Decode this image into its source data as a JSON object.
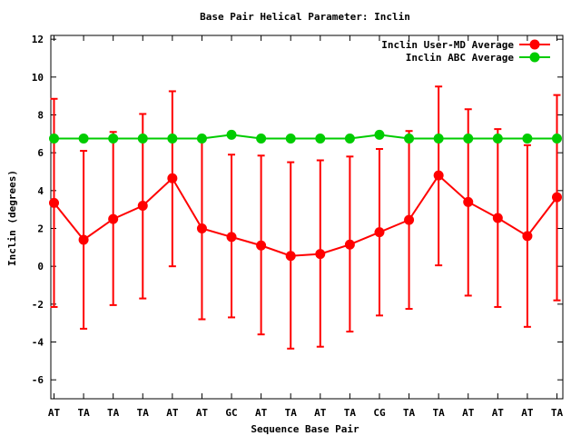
{
  "chart_data": {
    "type": "line",
    "title": "Base Pair Helical Parameter: Inclin",
    "xlabel": "Sequence Base Pair",
    "ylabel": "Inclin (degrees)",
    "categories": [
      "AT",
      "TA",
      "TA",
      "TA",
      "AT",
      "AT",
      "GC",
      "AT",
      "TA",
      "AT",
      "TA",
      "CG",
      "TA",
      "TA",
      "AT",
      "AT",
      "AT",
      "TA"
    ],
    "ylim": [
      -7,
      12.2
    ],
    "yticks": [
      -6,
      -4,
      -2,
      0,
      2,
      4,
      6,
      8,
      10,
      12
    ],
    "grid": false,
    "legend_position": "top-right",
    "series": [
      {
        "name": "Inclin User-MD Average",
        "color": "#ff0000",
        "values": [
          3.35,
          1.4,
          2.5,
          3.2,
          4.65,
          2.0,
          1.55,
          1.1,
          0.55,
          0.65,
          1.15,
          1.8,
          2.45,
          4.8,
          3.4,
          2.55,
          1.6,
          3.65
        ],
        "err_low": [
          -2.15,
          -3.3,
          -2.05,
          -1.7,
          0.0,
          -2.8,
          -2.7,
          -3.6,
          -4.35,
          -4.25,
          -3.45,
          -2.6,
          -2.25,
          0.05,
          -1.55,
          -2.15,
          -3.2,
          -1.8
        ],
        "err_high": [
          8.85,
          6.1,
          7.1,
          8.05,
          9.25,
          6.8,
          5.9,
          5.85,
          5.5,
          5.6,
          5.8,
          6.2,
          7.15,
          9.5,
          8.3,
          7.25,
          6.4,
          9.05
        ]
      },
      {
        "name": "Inclin ABC Average",
        "color": "#00cc00",
        "values": [
          6.75,
          6.75,
          6.75,
          6.75,
          6.75,
          6.75,
          6.95,
          6.75,
          6.75,
          6.75,
          6.75,
          6.95,
          6.75,
          6.75,
          6.75,
          6.75,
          6.75,
          6.75
        ]
      }
    ]
  }
}
